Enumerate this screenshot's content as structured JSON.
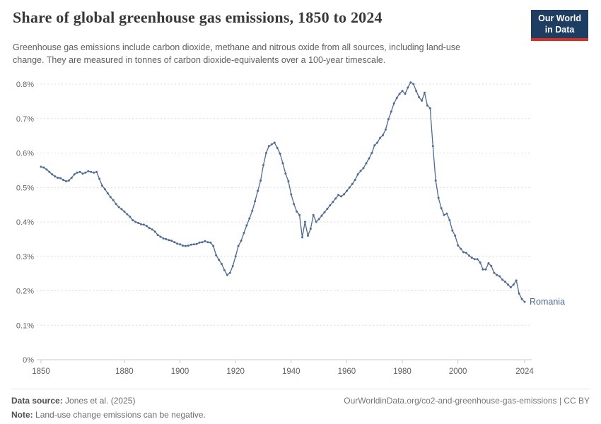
{
  "header": {
    "title": "Share of global greenhouse gas emissions, 1850 to 2024",
    "subtitle": "Greenhouse gas emissions include carbon dioxide, methane and nitrous oxide from all sources, including land-use change. They are measured in tonnes of carbon dioxide-equivalents over a 100-year timescale.",
    "logo": {
      "line1": "Our World",
      "line2": "in Data",
      "bg_color": "#1d3d63",
      "accent_color": "#d73025"
    }
  },
  "chart_data": {
    "type": "line",
    "title": "Share of global greenhouse gas emissions, 1850 to 2024",
    "xlabel": "",
    "ylabel": "",
    "xlim": [
      1850,
      2024
    ],
    "ylim": [
      0,
      0.8
    ],
    "grid": "dashed horizontal",
    "legend_position": "end-of-line label",
    "x_tick_values": [
      1850,
      1880,
      1900,
      1920,
      1940,
      1960,
      1980,
      2000,
      2024
    ],
    "x_tick_labels": [
      "1850",
      "1880",
      "1900",
      "1920",
      "1940",
      "1960",
      "1980",
      "2000",
      "2024"
    ],
    "y_tick_values": [
      0,
      0.1,
      0.2,
      0.3,
      0.4,
      0.5,
      0.6,
      0.7,
      0.8
    ],
    "y_tick_labels": [
      "0%",
      "0.1%",
      "0.2%",
      "0.3%",
      "0.4%",
      "0.5%",
      "0.6%",
      "0.7%",
      "0.8%"
    ],
    "series": [
      {
        "name": "Romania",
        "color": "#4C6A9C",
        "unit": "% of global greenhouse gas emissions",
        "x_start": 1850,
        "x_step": 1,
        "values": [
          0.56,
          0.558,
          0.552,
          0.545,
          0.538,
          0.532,
          0.528,
          0.527,
          0.522,
          0.518,
          0.52,
          0.528,
          0.538,
          0.543,
          0.545,
          0.54,
          0.543,
          0.547,
          0.545,
          0.543,
          0.545,
          0.525,
          0.505,
          0.495,
          0.483,
          0.472,
          0.463,
          0.452,
          0.443,
          0.437,
          0.43,
          0.422,
          0.415,
          0.405,
          0.4,
          0.397,
          0.393,
          0.392,
          0.388,
          0.382,
          0.378,
          0.372,
          0.362,
          0.357,
          0.352,
          0.35,
          0.347,
          0.345,
          0.341,
          0.337,
          0.335,
          0.331,
          0.33,
          0.331,
          0.334,
          0.335,
          0.336,
          0.34,
          0.341,
          0.344,
          0.341,
          0.34,
          0.33,
          0.303,
          0.29,
          0.278,
          0.26,
          0.246,
          0.252,
          0.272,
          0.3,
          0.33,
          0.345,
          0.368,
          0.39,
          0.41,
          0.432,
          0.46,
          0.49,
          0.52,
          0.565,
          0.6,
          0.62,
          0.625,
          0.63,
          0.615,
          0.598,
          0.57,
          0.54,
          0.518,
          0.48,
          0.452,
          0.43,
          0.42,
          0.355,
          0.4,
          0.36,
          0.38,
          0.42,
          0.4,
          0.408,
          0.418,
          0.428,
          0.438,
          0.448,
          0.458,
          0.468,
          0.478,
          0.474,
          0.48,
          0.49,
          0.5,
          0.51,
          0.522,
          0.538,
          0.548,
          0.556,
          0.57,
          0.584,
          0.6,
          0.622,
          0.63,
          0.644,
          0.652,
          0.668,
          0.698,
          0.72,
          0.744,
          0.76,
          0.772,
          0.78,
          0.772,
          0.79,
          0.805,
          0.8,
          0.78,
          0.762,
          0.752,
          0.775,
          0.738,
          0.73,
          0.62,
          0.52,
          0.47,
          0.44,
          0.42,
          0.424,
          0.405,
          0.375,
          0.36,
          0.332,
          0.322,
          0.312,
          0.31,
          0.302,
          0.296,
          0.292,
          0.292,
          0.282,
          0.262,
          0.262,
          0.28,
          0.272,
          0.252,
          0.246,
          0.242,
          0.232,
          0.226,
          0.218,
          0.21,
          0.218,
          0.23,
          0.192,
          0.176,
          0.168
        ]
      }
    ],
    "end_label": "Romania"
  },
  "footer": {
    "source_label": "Data source:",
    "source_text": "Jones et al. (2025)",
    "attribution": "OurWorldinData.org/co2-and-greenhouse-gas-emissions | CC BY",
    "note_label": "Note:",
    "note_text": "Land-use change emissions can be negative."
  }
}
